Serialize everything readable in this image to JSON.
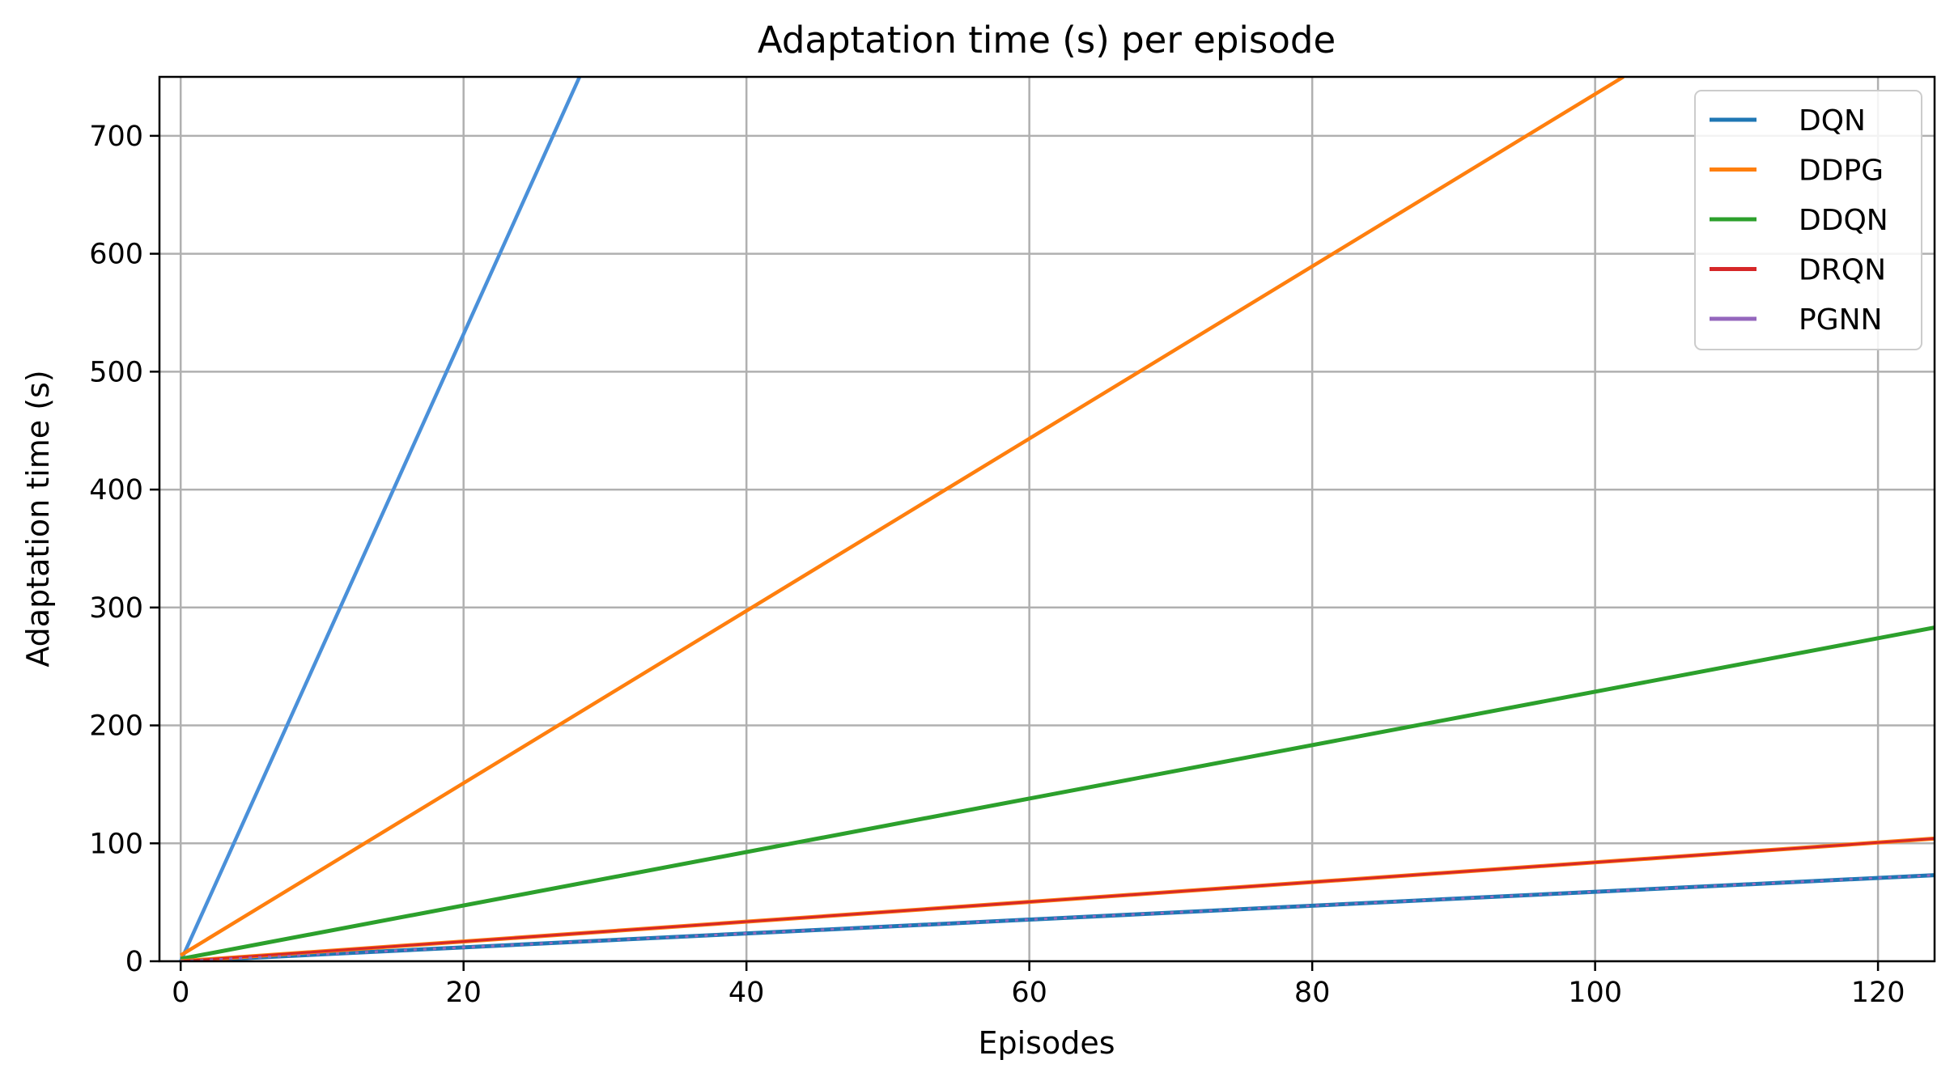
{
  "chart_data": {
    "type": "line",
    "title": "Adaptation time (s) per episode",
    "xlabel": "Episodes",
    "ylabel": "Adaptation time (s)",
    "xlim": [
      -1.5,
      124
    ],
    "ylim": [
      0,
      750
    ],
    "xticks": [
      0,
      20,
      40,
      60,
      80,
      100,
      120
    ],
    "yticks": [
      0,
      100,
      200,
      300,
      400,
      500,
      600,
      700
    ],
    "grid": true,
    "legend_position": "top-right",
    "series": [
      {
        "name": "DQN",
        "color": "#1f77b4",
        "x": [
          0,
          124
        ],
        "y": [
          0,
          73
        ]
      },
      {
        "name": "DDPG",
        "color": "#ff7f0e",
        "x": [
          0,
          124
        ],
        "y": [
          0,
          104
        ]
      },
      {
        "name": "DDQN",
        "color": "#2ca02c",
        "x": [
          0,
          124
        ],
        "y": [
          2,
          283
        ]
      },
      {
        "name": "DRQN",
        "color": "#d62728",
        "x": [
          0,
          124
        ],
        "y": [
          0,
          104
        ]
      },
      {
        "name": "PGNN",
        "color": "#9467bd",
        "x": [
          0,
          124
        ],
        "y": [
          0,
          73
        ]
      }
    ],
    "unlabeled_lines": [
      {
        "color": "#4a90d9",
        "x": [
          0,
          28.2
        ],
        "y": [
          0,
          750
        ]
      },
      {
        "color": "#ff7f0e",
        "x": [
          0,
          102
        ],
        "y": [
          5,
          750
        ]
      }
    ]
  }
}
